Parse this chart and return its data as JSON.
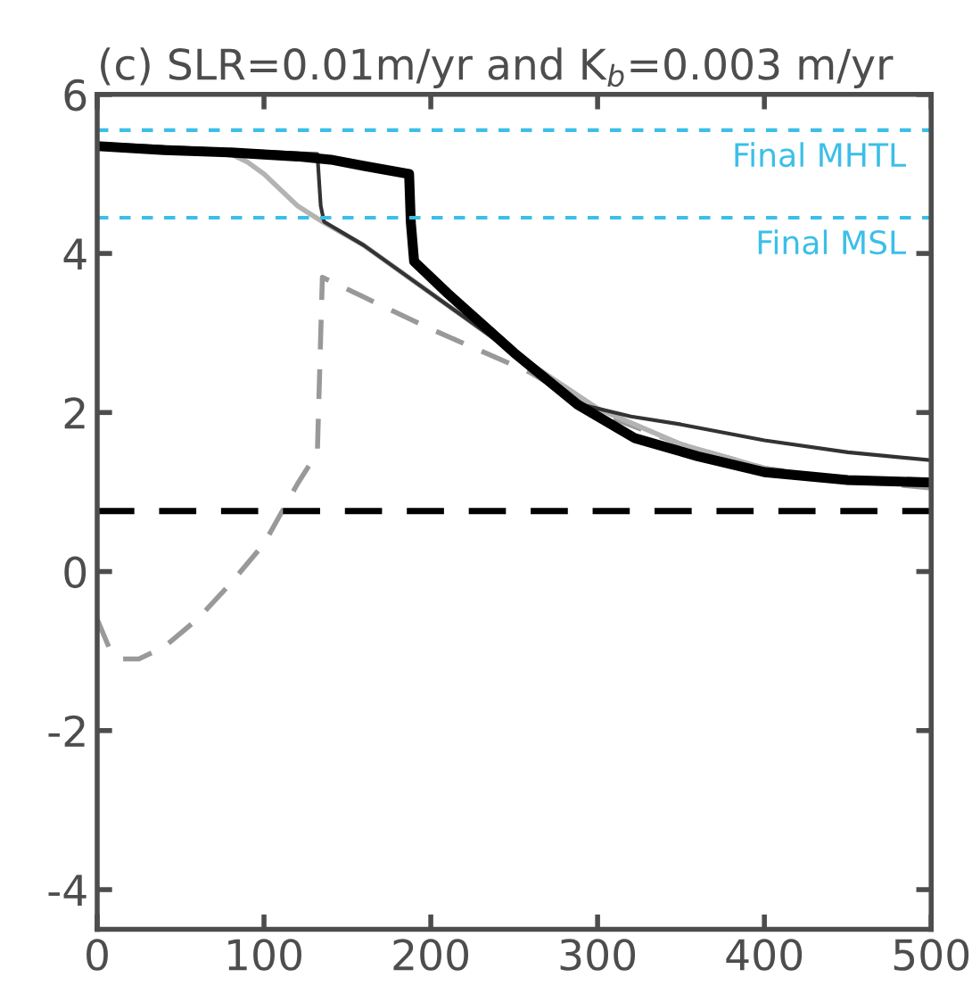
{
  "chart_data": {
    "type": "line",
    "title": "(c) SLR=0.01m/yr and K$_{b}$=0.003 m/yr",
    "xlim": [
      0,
      500
    ],
    "xticks": [
      0,
      100,
      200,
      300,
      400,
      500
    ],
    "ylim": [
      -4.5,
      6
    ],
    "yticks": [
      -4,
      -2,
      0,
      2,
      4,
      6
    ],
    "grid": false,
    "series": [
      {
        "color": "#999999",
        "line_style": "dashed",
        "x": [
          0,
          8,
          15,
          25,
          40,
          60,
          80,
          100,
          120,
          132,
          135,
          160,
          200,
          260,
          300,
          350,
          400,
          450,
          500
        ],
        "values": [
          -0.6,
          -1.0,
          -1.1,
          -1.1,
          -0.95,
          -0.6,
          -0.15,
          0.35,
          1.1,
          1.5,
          3.7,
          3.45,
          3.05,
          2.5,
          2.0,
          1.6,
          1.3,
          1.15,
          1.05
        ]
      },
      {
        "color": "#b3b3b3",
        "line_style": "solid",
        "x": [
          0,
          40,
          75,
          90,
          100,
          110,
          120,
          135,
          160,
          200,
          250,
          300,
          350,
          400,
          450,
          500
        ],
        "values": [
          5.35,
          5.32,
          5.3,
          5.15,
          5.0,
          4.8,
          4.6,
          4.4,
          4.1,
          3.5,
          2.75,
          2.05,
          1.6,
          1.3,
          1.12,
          1.1
        ]
      },
      {
        "color": "#333333",
        "line_style": "solid",
        "x": [
          0,
          40,
          80,
          110,
          132,
          134,
          136,
          160,
          200,
          250,
          290,
          320,
          350,
          400,
          450,
          500
        ],
        "values": [
          5.38,
          5.34,
          5.3,
          5.27,
          5.25,
          4.6,
          4.4,
          4.1,
          3.5,
          2.75,
          2.1,
          1.95,
          1.85,
          1.65,
          1.5,
          1.4
        ]
      },
      {
        "color": "#000000",
        "line_style": "solid",
        "x": [
          0,
          40,
          80,
          120,
          140,
          160,
          187,
          188,
          190,
          210,
          250,
          288,
          322,
          360,
          400,
          450,
          500
        ],
        "values": [
          5.35,
          5.3,
          5.27,
          5.22,
          5.18,
          5.1,
          5.0,
          4.4,
          3.9,
          3.5,
          2.75,
          2.1,
          1.68,
          1.45,
          1.25,
          1.15,
          1.12
        ]
      }
    ],
    "ref_lines": [
      {
        "axis": "y",
        "value": 5.55,
        "label": "Final MHTL",
        "color": "#3bbfe8",
        "line_style": "dashed"
      },
      {
        "axis": "y",
        "value": 4.45,
        "label": "Final MSL",
        "color": "#3bbfe8",
        "line_style": "dashed"
      },
      {
        "axis": "y",
        "value": 0.76,
        "color": "#000000",
        "line_style": "dashed"
      }
    ]
  }
}
